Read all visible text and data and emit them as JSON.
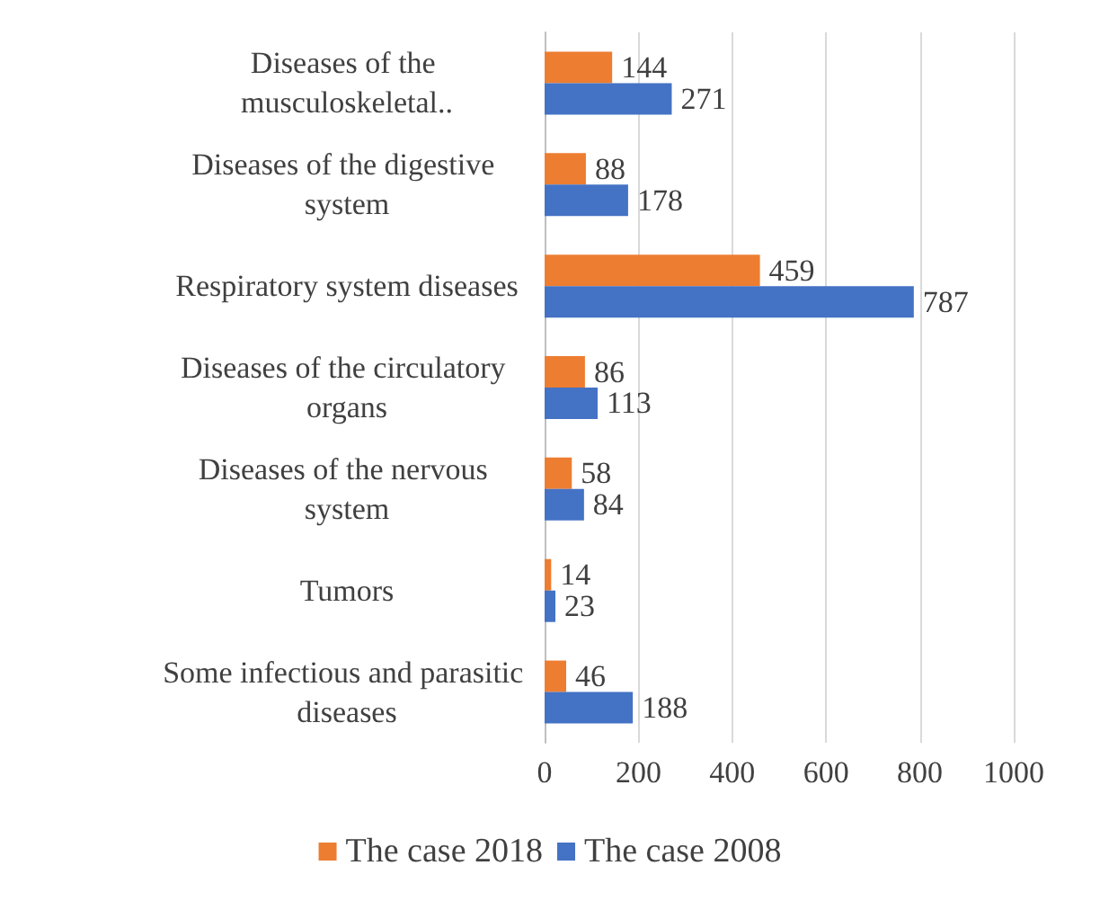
{
  "chart_data": {
    "type": "bar",
    "orientation": "horizontal",
    "categories": [
      "Diseases of the musculoskeletal..",
      "Diseases of the digestive system",
      "Respiratory system diseases",
      "Diseases of the circulatory organs",
      "Diseases of the nervous system",
      "Tumors",
      "Some infectious and parasitic diseases"
    ],
    "series": [
      {
        "name": "The case 2018",
        "color": "#ed7d31",
        "values": [
          144,
          88,
          459,
          86,
          58,
          14,
          46
        ]
      },
      {
        "name": "The case 2008",
        "color": "#4472c4",
        "values": [
          271,
          178,
          787,
          113,
          84,
          23,
          188
        ]
      }
    ],
    "xlim": [
      0,
      1000
    ],
    "xticks": [
      0,
      200,
      400,
      600,
      800,
      1000
    ],
    "grid": "x",
    "legend": "bottom",
    "data_labels": true
  }
}
